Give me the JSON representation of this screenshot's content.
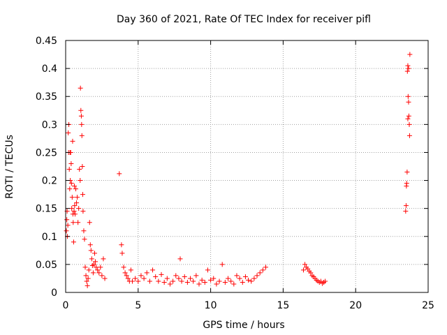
{
  "chart_data": {
    "type": "scatter",
    "title": "Day 360 of 2021, Rate Of TEC Index for receiver pifl",
    "xlabel": "GPS time / hours",
    "ylabel": "ROTI / TECUs",
    "xlim": [
      0,
      25
    ],
    "ylim": [
      0,
      0.45
    ],
    "x_ticks": [
      0,
      5,
      10,
      15,
      20,
      25
    ],
    "x_tick_labels": [
      "0",
      "5",
      "10",
      "15",
      "20",
      "25"
    ],
    "y_ticks": [
      0,
      0.05,
      0.1,
      0.15,
      0.2,
      0.25,
      0.3,
      0.35,
      0.4,
      0.45
    ],
    "y_tick_labels": [
      "0",
      "0.05",
      "0.1",
      "0.15",
      "0.2",
      "0.25",
      "0.3",
      "0.35",
      "0.4",
      "0.45"
    ],
    "grid": true,
    "marker": "+",
    "color": "#ff0000",
    "series": [
      {
        "name": "ROTI",
        "points": [
          [
            0.05,
            0.11
          ],
          [
            0.08,
            0.13
          ],
          [
            0.1,
            0.145
          ],
          [
            0.12,
            0.1
          ],
          [
            0.15,
            0.12
          ],
          [
            0.18,
            0.285
          ],
          [
            0.2,
            0.25
          ],
          [
            0.22,
            0.3
          ],
          [
            0.25,
            0.22
          ],
          [
            0.28,
            0.185
          ],
          [
            0.3,
            0.25
          ],
          [
            0.32,
            0.2
          ],
          [
            0.35,
            0.25
          ],
          [
            0.38,
            0.23
          ],
          [
            0.4,
            0.195
          ],
          [
            0.42,
            0.15
          ],
          [
            0.45,
            0.17
          ],
          [
            0.48,
            0.27
          ],
          [
            0.5,
            0.14
          ],
          [
            0.52,
            0.125
          ],
          [
            0.55,
            0.09
          ],
          [
            0.58,
            0.145
          ],
          [
            0.6,
            0.19
          ],
          [
            0.62,
            0.155
          ],
          [
            0.65,
            0.14
          ],
          [
            0.7,
            0.185
          ],
          [
            0.75,
            0.16
          ],
          [
            0.8,
            0.17
          ],
          [
            0.85,
            0.125
          ],
          [
            0.9,
            0.15
          ],
          [
            0.95,
            0.22
          ],
          [
            1.0,
            0.2
          ],
          [
            1.02,
            0.365
          ],
          [
            1.05,
            0.325
          ],
          [
            1.08,
            0.315
          ],
          [
            1.1,
            0.3
          ],
          [
            1.12,
            0.28
          ],
          [
            1.15,
            0.225
          ],
          [
            1.18,
            0.175
          ],
          [
            1.2,
            0.145
          ],
          [
            1.25,
            0.11
          ],
          [
            1.3,
            0.095
          ],
          [
            1.35,
            0.045
          ],
          [
            1.4,
            0.03
          ],
          [
            1.45,
            0.02
          ],
          [
            1.5,
            0.012
          ],
          [
            1.55,
            0.025
          ],
          [
            1.6,
            0.04
          ],
          [
            1.65,
            0.125
          ],
          [
            1.7,
            0.085
          ],
          [
            1.75,
            0.075
          ],
          [
            1.8,
            0.06
          ],
          [
            1.85,
            0.048
          ],
          [
            1.9,
            0.035
          ],
          [
            1.95,
            0.05
          ],
          [
            2.0,
            0.07
          ],
          [
            2.05,
            0.055
          ],
          [
            2.1,
            0.045
          ],
          [
            2.2,
            0.04
          ],
          [
            2.3,
            0.035
          ],
          [
            2.4,
            0.045
          ],
          [
            2.5,
            0.03
          ],
          [
            2.6,
            0.06
          ],
          [
            2.7,
            0.025
          ],
          [
            3.7,
            0.212
          ],
          [
            3.85,
            0.085
          ],
          [
            3.9,
            0.07
          ],
          [
            4.0,
            0.045
          ],
          [
            4.1,
            0.035
          ],
          [
            4.2,
            0.03
          ],
          [
            4.3,
            0.025
          ],
          [
            4.4,
            0.02
          ],
          [
            4.5,
            0.04
          ],
          [
            4.6,
            0.02
          ],
          [
            4.8,
            0.025
          ],
          [
            5.0,
            0.02
          ],
          [
            5.2,
            0.03
          ],
          [
            5.4,
            0.025
          ],
          [
            5.6,
            0.035
          ],
          [
            5.8,
            0.02
          ],
          [
            6.0,
            0.04
          ],
          [
            6.2,
            0.028
          ],
          [
            6.4,
            0.02
          ],
          [
            6.6,
            0.032
          ],
          [
            6.8,
            0.018
          ],
          [
            7.0,
            0.025
          ],
          [
            7.2,
            0.015
          ],
          [
            7.4,
            0.02
          ],
          [
            7.6,
            0.03
          ],
          [
            7.8,
            0.025
          ],
          [
            7.9,
            0.06
          ],
          [
            8.0,
            0.02
          ],
          [
            8.2,
            0.028
          ],
          [
            8.4,
            0.018
          ],
          [
            8.6,
            0.025
          ],
          [
            8.8,
            0.02
          ],
          [
            9.0,
            0.03
          ],
          [
            9.2,
            0.015
          ],
          [
            9.4,
            0.022
          ],
          [
            9.6,
            0.018
          ],
          [
            9.8,
            0.04
          ],
          [
            10.0,
            0.022
          ],
          [
            10.2,
            0.025
          ],
          [
            10.4,
            0.015
          ],
          [
            10.6,
            0.02
          ],
          [
            10.8,
            0.05
          ],
          [
            11.0,
            0.018
          ],
          [
            11.2,
            0.025
          ],
          [
            11.4,
            0.02
          ],
          [
            11.6,
            0.015
          ],
          [
            11.8,
            0.03
          ],
          [
            12.0,
            0.025
          ],
          [
            12.2,
            0.018
          ],
          [
            12.4,
            0.028
          ],
          [
            12.6,
            0.022
          ],
          [
            12.8,
            0.02
          ],
          [
            13.0,
            0.025
          ],
          [
            13.2,
            0.03
          ],
          [
            13.4,
            0.035
          ],
          [
            13.6,
            0.04
          ],
          [
            13.8,
            0.045
          ],
          [
            16.4,
            0.04
          ],
          [
            16.5,
            0.05
          ],
          [
            16.6,
            0.045
          ],
          [
            16.7,
            0.042
          ],
          [
            16.8,
            0.038
          ],
          [
            16.9,
            0.035
          ],
          [
            17.0,
            0.03
          ],
          [
            17.1,
            0.028
          ],
          [
            17.2,
            0.025
          ],
          [
            17.3,
            0.022
          ],
          [
            17.4,
            0.02
          ],
          [
            17.5,
            0.018
          ],
          [
            17.6,
            0.02
          ],
          [
            17.7,
            0.016
          ],
          [
            17.8,
            0.018
          ],
          [
            17.9,
            0.02
          ],
          [
            23.45,
            0.145
          ],
          [
            23.48,
            0.155
          ],
          [
            23.5,
            0.19
          ],
          [
            23.52,
            0.195
          ],
          [
            23.55,
            0.215
          ],
          [
            23.57,
            0.395
          ],
          [
            23.6,
            0.405
          ],
          [
            23.62,
            0.35
          ],
          [
            23.65,
            0.34
          ],
          [
            23.67,
            0.315
          ],
          [
            23.7,
            0.3
          ],
          [
            23.72,
            0.28
          ],
          [
            23.74,
            0.425
          ],
          [
            23.6,
            0.31
          ],
          [
            23.65,
            0.4
          ]
        ]
      }
    ]
  }
}
